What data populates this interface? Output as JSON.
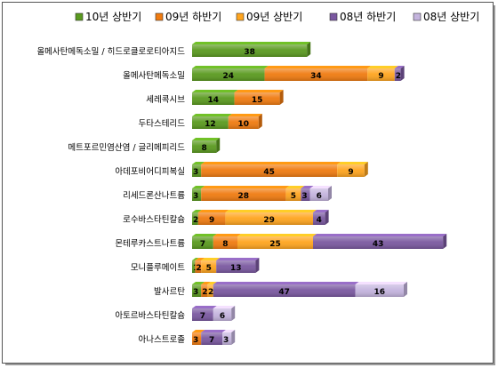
{
  "chart_data": {
    "type": "bar",
    "orientation": "horizontal",
    "stacked": true,
    "legend_position": "top",
    "grid": false,
    "series": [
      {
        "name": "10년 상반기",
        "color": "#5a9a1f",
        "values": [
          38,
          24,
          14,
          12,
          8,
          3,
          3,
          2,
          7,
          1,
          3,
          null,
          null
        ]
      },
      {
        "name": "09년 하반기",
        "color": "#f07b10",
        "values": [
          null,
          34,
          15,
          10,
          null,
          45,
          28,
          9,
          8,
          2,
          2,
          null,
          3
        ]
      },
      {
        "name": "09년 상반기",
        "color": "#ffa51f",
        "values": [
          null,
          9,
          null,
          null,
          null,
          9,
          5,
          29,
          25,
          5,
          2,
          null,
          null
        ]
      },
      {
        "name": "08년 하반기",
        "color": "#7a58a0",
        "values": [
          null,
          2,
          null,
          null,
          null,
          null,
          3,
          4,
          43,
          13,
          47,
          7,
          7
        ]
      },
      {
        "name": "08년 상반기",
        "color": "#c4b4de",
        "values": [
          null,
          null,
          null,
          null,
          null,
          null,
          6,
          null,
          null,
          null,
          16,
          6,
          3
        ]
      }
    ],
    "categories": [
      "올메사탄메독소밀 / 히드로클로로티아지드",
      "올메사탄메독소밀",
      "세레콕시브",
      "두타스테리드",
      "메트포르민염산염 / 글리메피리드",
      "아데포비어디피복실",
      "리세드론산나트륨",
      "로수바스타틴칼슘",
      "몬테루카스트나트륨",
      "모니플루메이트",
      "발사르탄",
      "아토르바스타틴칼슘",
      "아나스트로졸"
    ]
  }
}
